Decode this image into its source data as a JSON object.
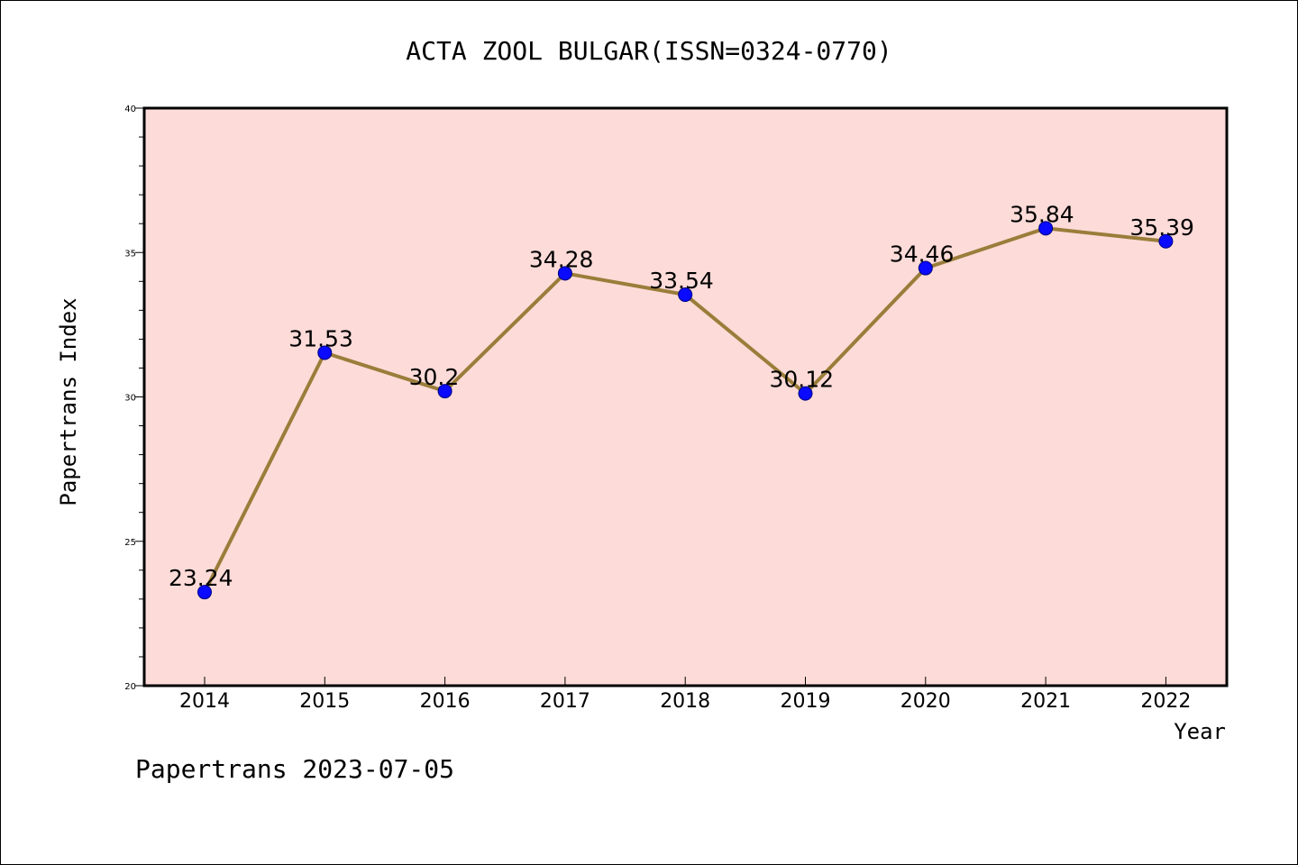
{
  "colors": {
    "plot_background": "#fddbd8",
    "line": "#9a7d3a",
    "marker_fill": "#0a0aff",
    "marker_stroke": "#000080",
    "axis": "#000000"
  },
  "footer": {
    "text": "Papertrans 2023-07-05"
  },
  "chart_data": {
    "type": "line",
    "title": "ACTA ZOOL BULGAR(ISSN=0324-0770)",
    "xlabel": "Year",
    "ylabel": "Papertrans Index",
    "categories": [
      "2014",
      "2015",
      "2016",
      "2017",
      "2018",
      "2019",
      "2020",
      "2021",
      "2022"
    ],
    "values": [
      23.24,
      31.53,
      30.2,
      34.28,
      33.54,
      30.12,
      34.46,
      35.84,
      35.39
    ],
    "value_labels": [
      "23.24",
      "31.53",
      "30.2",
      "34.28",
      "33.54",
      "30.12",
      "34.46",
      "35.84",
      "35.39"
    ],
    "ylim": [
      20,
      40
    ],
    "yticks": [
      "20",
      "25",
      "30",
      "35",
      "40"
    ],
    "grid": false,
    "legend": "none"
  }
}
